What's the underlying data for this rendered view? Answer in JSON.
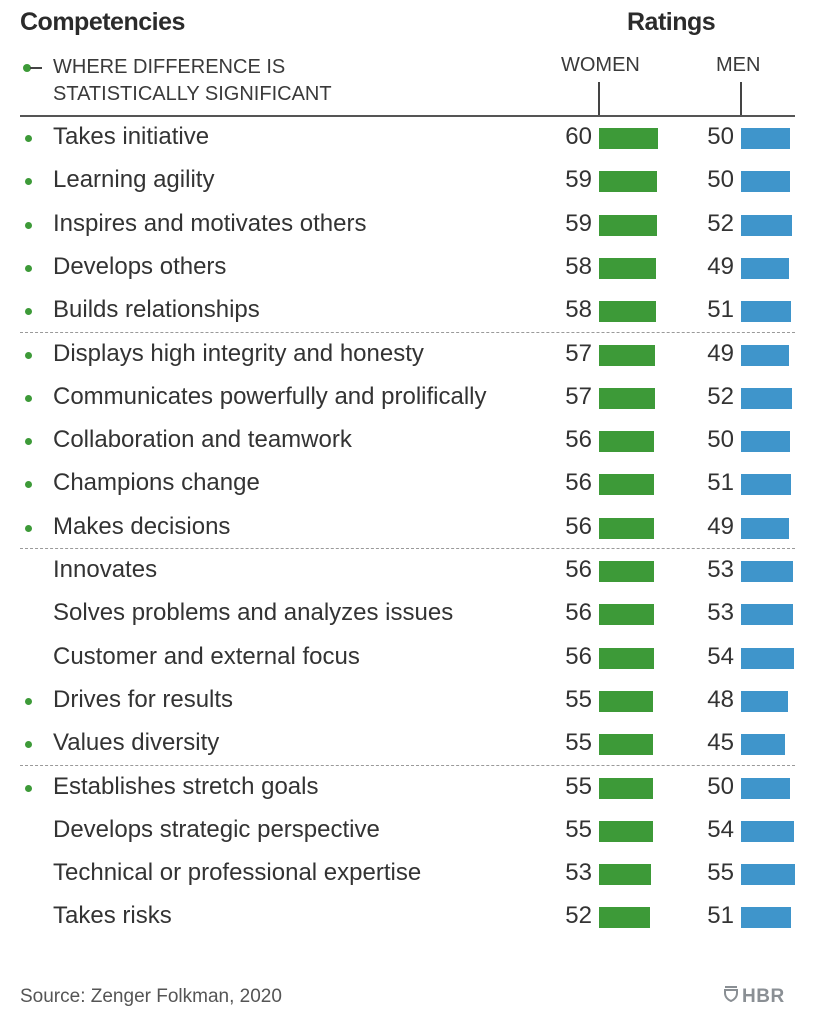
{
  "chart_data": {
    "type": "bar",
    "title": "Competencies",
    "value_header": "Ratings",
    "legend": [
      {
        "symbol": "green-dot",
        "label": "WHERE DIFFERENCE IS STATISTICALLY SIGNIFICANT"
      }
    ],
    "series": [
      {
        "name": "WOMEN",
        "color": "#3d9a38",
        "values": [
          60,
          59,
          59,
          58,
          58,
          57,
          57,
          56,
          56,
          56,
          56,
          56,
          56,
          55,
          55,
          55,
          55,
          53,
          52
        ]
      },
      {
        "name": "MEN",
        "color": "#3f95cb",
        "values": [
          50,
          50,
          52,
          49,
          51,
          49,
          52,
          50,
          51,
          49,
          53,
          53,
          54,
          48,
          45,
          50,
          54,
          55,
          51
        ]
      }
    ],
    "categories": [
      "Takes initiative",
      "Learning agility",
      "Inspires and motivates others",
      "Develops others",
      "Builds relationships",
      "Displays high integrity and honesty",
      "Communicates powerfully and prolifically",
      "Collaboration and teamwork",
      "Champions change",
      "Makes decisions",
      "Innovates",
      "Solves problems and analyzes issues",
      "Customer and external focus",
      "Drives for results",
      "Values diversity",
      "Establishes stretch goals",
      "Develops strategic perspective",
      "Technical or professional expertise",
      "Takes risks"
    ],
    "significant": [
      true,
      true,
      true,
      true,
      true,
      true,
      true,
      true,
      true,
      true,
      false,
      false,
      false,
      true,
      true,
      true,
      false,
      false,
      false
    ],
    "group_breaks_after": [
      5,
      10,
      15
    ],
    "source": "Source: Zenger Folkman, 2020",
    "brand": "HBR"
  }
}
